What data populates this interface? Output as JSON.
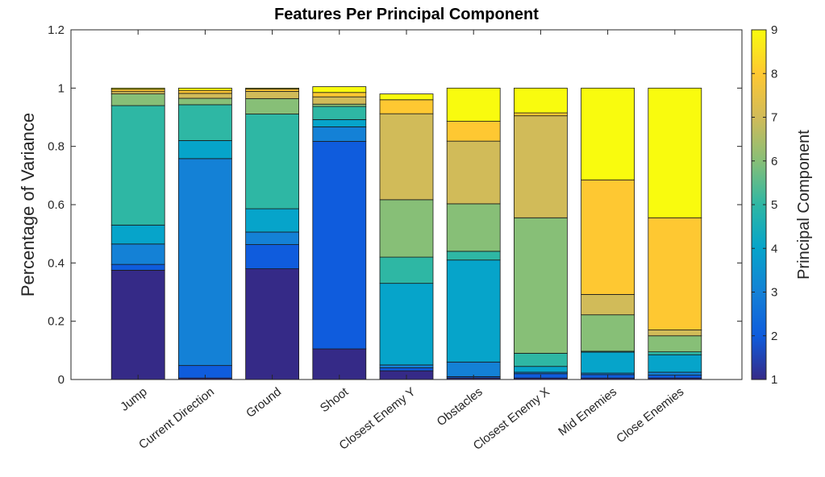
{
  "chart_data": {
    "type": "bar",
    "stacked": true,
    "title": "Features Per Principal Component",
    "xlabel": "",
    "ylabel": "Percentage of Variance",
    "ylim": [
      0,
      1.2
    ],
    "yticks": [
      "0",
      "0.2",
      "0.4",
      "0.6",
      "0.8",
      "1",
      "1.2"
    ],
    "categories": [
      "Jump",
      "Current Direction",
      "Ground",
      "Shoot",
      "Closest Enemy Y",
      "Obstacles",
      "Closest Enemy X",
      "Mid Enemies",
      "Close Enemies"
    ],
    "series": [
      {
        "name": "1",
        "color": "#352a87",
        "values": [
          0.375,
          0.005,
          0.38,
          0.105,
          0.03,
          0.005,
          0.005,
          0.005,
          0.005
        ]
      },
      {
        "name": "2",
        "color": "#0f5cdd",
        "values": [
          0.02,
          0.043,
          0.083,
          0.712,
          0.01,
          0.005,
          0.015,
          0.012,
          0.01
        ]
      },
      {
        "name": "3",
        "color": "#1481d6",
        "values": [
          0.07,
          0.71,
          0.043,
          0.05,
          0.01,
          0.05,
          0.005,
          0.005,
          0.01
        ]
      },
      {
        "name": "4",
        "color": "#06a4ca",
        "values": [
          0.065,
          0.062,
          0.08,
          0.025,
          0.28,
          0.35,
          0.02,
          0.072,
          0.06
        ]
      },
      {
        "name": "5",
        "color": "#2eb7a4",
        "values": [
          0.41,
          0.123,
          0.325,
          0.045,
          0.09,
          0.03,
          0.045,
          0.003,
          0.01
        ]
      },
      {
        "name": "6",
        "color": "#87bf77",
        "values": [
          0.04,
          0.022,
          0.053,
          0.008,
          0.197,
          0.163,
          0.465,
          0.125,
          0.055
        ]
      },
      {
        "name": "7",
        "color": "#d1bb59",
        "values": [
          0.008,
          0.017,
          0.025,
          0.025,
          0.295,
          0.215,
          0.35,
          0.07,
          0.02
        ]
      },
      {
        "name": "8",
        "color": "#fec832",
        "values": [
          0.008,
          0.01,
          0.008,
          0.015,
          0.048,
          0.068,
          0.01,
          0.393,
          0.385
        ]
      },
      {
        "name": "9",
        "color": "#f9fb0e",
        "values": [
          0.004,
          0.008,
          0.003,
          0.02,
          0.02,
          0.114,
          0.085,
          0.315,
          0.445
        ]
      }
    ],
    "colorbar": {
      "label": "Principal Component",
      "range": [
        1,
        9
      ],
      "ticks": [
        "1",
        "2",
        "3",
        "4",
        "5",
        "6",
        "7",
        "8",
        "9"
      ],
      "colors": [
        "#352a87",
        "#0f5cdd",
        "#1481d6",
        "#06a4ca",
        "#2eb7a4",
        "#87bf77",
        "#d1bb59",
        "#fec832",
        "#f9fb0e"
      ]
    },
    "grid": false,
    "legend": "colorbar-right"
  }
}
